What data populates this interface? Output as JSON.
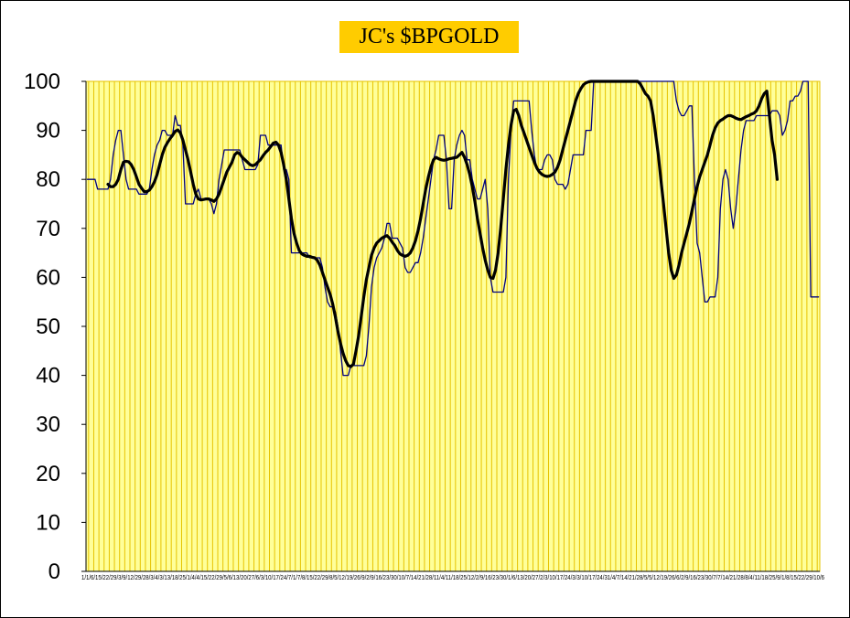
{
  "chart_data": {
    "type": "line",
    "title": "JC's $BPGOLD",
    "xlabel": "",
    "ylabel": "",
    "ylim": [
      0,
      100
    ],
    "y_ticks": [
      "0",
      "10",
      "20",
      "30",
      "40",
      "50",
      "60",
      "70",
      "80",
      "90",
      "100"
    ],
    "x_tick_text": "1/1/6/15/22/29/3/9/12/29/28/3/4/3/13/18/25/1/4/4/15/22/29/5/6/13/20/27/6/3/10/17/24/7/1/7/8/15/22/29/8/5/12/19/26/9/2/9/16/23/30/10/7/14/21/28/11/4/11/18/25/12/2/9/16/23/30/1/6/13/20/27/2/3/10/17/24/3/3/10/17/24/31/4/7/14/21/28/5/5/12/19/26/6/2/9/16/23/30/7/7/14/21/28/8/4/11/18/25/9/1/8/15/22/29/10/6",
    "grid": true,
    "plot_background": "#ffff99",
    "grid_color": "#e6c300",
    "title_background": "#ffcc00",
    "series": [
      {
        "color": "#00007f",
        "values": [
          80,
          80,
          80,
          80,
          78,
          78,
          78,
          78,
          78,
          80,
          85,
          88,
          90,
          90,
          85,
          80,
          78,
          78,
          78,
          78,
          77,
          77,
          77,
          77,
          78,
          82,
          85,
          87,
          88,
          90,
          90,
          89,
          89,
          89,
          93,
          91,
          91,
          87,
          75,
          75,
          75,
          75,
          77,
          78,
          76,
          76,
          76,
          76,
          75,
          73,
          75,
          80,
          83,
          86,
          86,
          86,
          86,
          86,
          86,
          86,
          84,
          82,
          82,
          82,
          82,
          82,
          83,
          89,
          89,
          89,
          87,
          87,
          87,
          87,
          87,
          87,
          82,
          82,
          80,
          65,
          65,
          65,
          65,
          65,
          65,
          65,
          64,
          64,
          64,
          64,
          64,
          62,
          58,
          55,
          54,
          54,
          53,
          50,
          45,
          40,
          40,
          40,
          42,
          42,
          42,
          42,
          42,
          42,
          44,
          50,
          58,
          62,
          64,
          65,
          66,
          68,
          71,
          71,
          68,
          68,
          68,
          67,
          66,
          62,
          61,
          61,
          62,
          63,
          63,
          65,
          68,
          72,
          76,
          80,
          84,
          86,
          89,
          89,
          89,
          84,
          74,
          74,
          84,
          87,
          89,
          90,
          89,
          84,
          84,
          80,
          78,
          76,
          76,
          78,
          80,
          74,
          60,
          57,
          57,
          57,
          57,
          57,
          60,
          80,
          90,
          96,
          96,
          96,
          96,
          96,
          96,
          96,
          90,
          85,
          82,
          82,
          82,
          84,
          85,
          85,
          84,
          80,
          79,
          79,
          79,
          78,
          79,
          82,
          85,
          85,
          85,
          85,
          85,
          90,
          90,
          90,
          100,
          100,
          100,
          100,
          100,
          100,
          100,
          100,
          100,
          100,
          100,
          100,
          100,
          100,
          100,
          100,
          100,
          100,
          100,
          100,
          100,
          100,
          100,
          100,
          100,
          100,
          100,
          100,
          100,
          100,
          100,
          100,
          96,
          94,
          93,
          93,
          94,
          95,
          95,
          80,
          67,
          65,
          60,
          55,
          55,
          56,
          56,
          56,
          60,
          74,
          80,
          82,
          80,
          74,
          70,
          74,
          80,
          86,
          90,
          92,
          92,
          92,
          92,
          93,
          93,
          93,
          93,
          93,
          93,
          94,
          94,
          94,
          93,
          89,
          90,
          92,
          96,
          96,
          97,
          97,
          98,
          100,
          100,
          100,
          56,
          56,
          56,
          56
        ]
      },
      {
        "color": "#000000",
        "values": [
          null,
          null,
          null,
          null,
          null,
          null,
          null,
          null,
          79,
          78.5,
          78.5,
          79,
          80,
          82,
          83.5,
          83.7,
          83.6,
          83,
          82,
          80.5,
          79,
          78.2,
          77.5,
          77.5,
          77.8,
          78.5,
          79.5,
          81,
          83,
          85,
          86.5,
          87.5,
          88.3,
          89,
          89.8,
          90.1,
          89.5,
          88,
          86,
          84,
          81.5,
          79,
          77,
          76,
          75.8,
          75.9,
          76,
          76,
          75.8,
          75.5,
          76,
          77,
          78.5,
          80,
          81.5,
          82.5,
          83.5,
          85,
          85.5,
          85.2,
          84.5,
          84,
          83.5,
          83,
          82.8,
          83,
          83.5,
          84,
          84.8,
          85.5,
          86,
          86.7,
          87.4,
          87.6,
          87,
          85.5,
          83,
          80,
          76,
          72,
          69,
          67,
          65.5,
          64.8,
          64.5,
          64.3,
          64.3,
          64.1,
          64,
          63.5,
          62.5,
          61,
          59.5,
          58,
          56.5,
          54.5,
          52,
          49,
          46.5,
          44.5,
          43,
          42,
          41.8,
          42.3,
          45,
          48,
          52,
          56,
          59.5,
          62,
          64.5,
          66,
          67,
          67.5,
          68,
          68.3,
          68.5,
          68,
          67.2,
          66.5,
          65.5,
          64.8,
          64.5,
          64.3,
          64.5,
          65,
          66,
          67.5,
          69.5,
          72,
          75,
          78,
          80.5,
          82.5,
          84,
          84.5,
          84.2,
          84,
          83.9,
          84,
          84.2,
          84.3,
          84.4,
          84.5,
          85,
          85.5,
          84.5,
          83,
          81,
          78.5,
          75.5,
          72,
          69,
          66,
          63.5,
          61.5,
          60,
          59.8,
          61.5,
          65,
          70,
          76,
          82,
          87,
          91,
          94,
          94.3,
          93,
          91,
          89.5,
          88,
          86.5,
          85,
          83.5,
          82.3,
          81.5,
          81,
          80.7,
          80.6,
          80.7,
          81,
          81.5,
          82.5,
          84,
          86,
          88,
          90,
          92,
          94,
          96,
          97.5,
          98.5,
          99.3,
          99.7,
          99.9,
          100,
          100,
          100,
          100,
          100,
          100,
          100,
          100,
          100,
          100,
          100,
          100,
          100,
          100,
          100,
          100,
          100,
          100,
          100,
          99.5,
          98.5,
          97.5,
          97,
          96,
          93,
          89,
          85,
          80,
          75,
          70,
          65,
          61.5,
          59.8,
          60.5,
          62.5,
          65,
          67,
          69,
          71,
          73.5,
          76,
          78.5,
          80.5,
          82,
          83.5,
          85,
          87,
          89,
          90.5,
          91.5,
          92,
          92.3,
          92.7,
          93,
          93,
          92.8,
          92.5,
          92.3,
          92.2,
          92.5,
          92.8,
          93,
          93.3,
          93.5,
          94,
          95,
          96.5,
          97.5,
          98,
          93,
          88,
          85,
          80
        ]
      }
    ]
  }
}
